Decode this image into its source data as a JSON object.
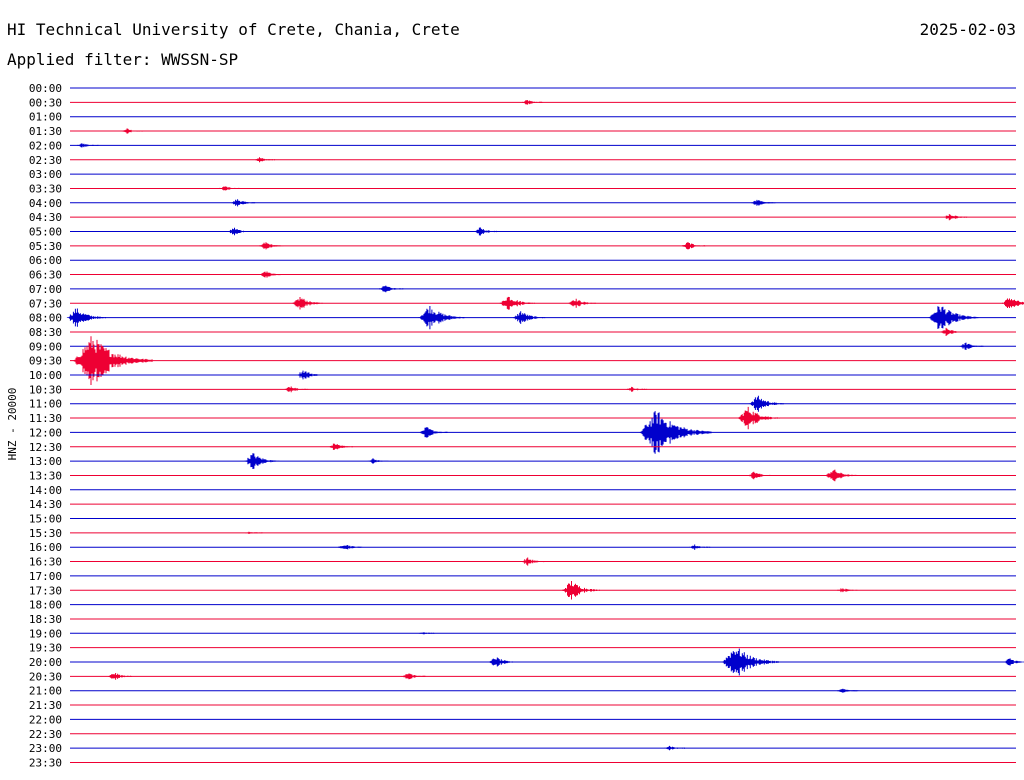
{
  "header": {
    "title": "HI Technical University of Crete, Chania, Crete",
    "date": "2025-02-03",
    "filter_text": "Applied filter: WWSSN-SP"
  },
  "colors": {
    "blue": "#0000cc",
    "red": "#ee0033",
    "background": "#ffffff"
  },
  "chart_data": {
    "type": "line",
    "title": "",
    "ylabel": "HNZ - 20000",
    "xlabel": "",
    "grid": false,
    "series_colors_alternate": [
      "#0000cc",
      "#ee0033"
    ],
    "rows": [
      "00:00",
      "00:30",
      "01:00",
      "01:30",
      "02:00",
      "02:30",
      "03:00",
      "03:30",
      "04:00",
      "04:30",
      "05:00",
      "05:30",
      "06:00",
      "06:30",
      "07:00",
      "07:30",
      "08:00",
      "08:30",
      "09:00",
      "09:30",
      "10:00",
      "10:30",
      "11:00",
      "11:30",
      "12:00",
      "12:30",
      "13:00",
      "13:30",
      "14:00",
      "14:30",
      "15:00",
      "15:30",
      "16:00",
      "16:30",
      "17:00",
      "17:30",
      "18:00",
      "18:30",
      "19:00",
      "19:30",
      "20:00",
      "20:30",
      "21:00",
      "21:30",
      "22:00",
      "22:30",
      "23:00",
      "23:30"
    ],
    "x_range_minutes": [
      0,
      30
    ],
    "events": [
      {
        "row": "00:30",
        "minute": 14.5,
        "amplitude": 2
      },
      {
        "row": "01:30",
        "minute": 1.8,
        "amplitude": 2
      },
      {
        "row": "02:00",
        "minute": 0.4,
        "amplitude": 2
      },
      {
        "row": "02:30",
        "minute": 6.0,
        "amplitude": 2
      },
      {
        "row": "03:30",
        "minute": 4.9,
        "amplitude": 2
      },
      {
        "row": "04:00",
        "minute": 5.3,
        "amplitude": 3
      },
      {
        "row": "04:00",
        "minute": 21.8,
        "amplitude": 3
      },
      {
        "row": "04:30",
        "minute": 27.9,
        "amplitude": 3
      },
      {
        "row": "05:00",
        "minute": 5.2,
        "amplitude": 3
      },
      {
        "row": "05:00",
        "minute": 13.0,
        "amplitude": 3
      },
      {
        "row": "05:30",
        "minute": 6.2,
        "amplitude": 3
      },
      {
        "row": "05:30",
        "minute": 19.6,
        "amplitude": 3
      },
      {
        "row": "06:30",
        "minute": 6.2,
        "amplitude": 3
      },
      {
        "row": "07:00",
        "minute": 10.0,
        "amplitude": 3
      },
      {
        "row": "07:30",
        "minute": 7.3,
        "amplitude": 5
      },
      {
        "row": "07:30",
        "minute": 13.9,
        "amplitude": 6
      },
      {
        "row": "07:30",
        "minute": 16.0,
        "amplitude": 4
      },
      {
        "row": "07:30",
        "minute": 29.8,
        "amplitude": 5
      },
      {
        "row": "08:00",
        "minute": 0.2,
        "amplitude": 7
      },
      {
        "row": "08:00",
        "minute": 11.4,
        "amplitude": 9
      },
      {
        "row": "08:00",
        "minute": 14.3,
        "amplitude": 5
      },
      {
        "row": "08:00",
        "minute": 27.6,
        "amplitude": 10
      },
      {
        "row": "08:30",
        "minute": 27.8,
        "amplitude": 3
      },
      {
        "row": "09:00",
        "minute": 28.4,
        "amplitude": 3
      },
      {
        "row": "09:30",
        "minute": 0.7,
        "amplitude": 18
      },
      {
        "row": "10:00",
        "minute": 7.4,
        "amplitude": 4
      },
      {
        "row": "10:30",
        "minute": 7.0,
        "amplitude": 3
      },
      {
        "row": "10:30",
        "minute": 17.8,
        "amplitude": 2
      },
      {
        "row": "11:00",
        "minute": 21.8,
        "amplitude": 6
      },
      {
        "row": "11:30",
        "minute": 21.5,
        "amplitude": 8
      },
      {
        "row": "12:00",
        "minute": 11.3,
        "amplitude": 4
      },
      {
        "row": "12:00",
        "minute": 18.6,
        "amplitude": 16
      },
      {
        "row": "12:30",
        "minute": 8.4,
        "amplitude": 3
      },
      {
        "row": "13:00",
        "minute": 5.8,
        "amplitude": 6
      },
      {
        "row": "13:00",
        "minute": 9.6,
        "amplitude": 2
      },
      {
        "row": "13:30",
        "minute": 21.7,
        "amplitude": 3
      },
      {
        "row": "13:30",
        "minute": 24.2,
        "amplitude": 5
      },
      {
        "row": "15:30",
        "minute": 5.7,
        "amplitude": 1
      },
      {
        "row": "16:00",
        "minute": 8.7,
        "amplitude": 3
      },
      {
        "row": "16:00",
        "minute": 19.8,
        "amplitude": 2
      },
      {
        "row": "16:30",
        "minute": 14.5,
        "amplitude": 3
      },
      {
        "row": "17:30",
        "minute": 15.9,
        "amplitude": 7
      },
      {
        "row": "17:30",
        "minute": 24.5,
        "amplitude": 2
      },
      {
        "row": "19:00",
        "minute": 11.2,
        "amplitude": 1
      },
      {
        "row": "20:00",
        "minute": 13.5,
        "amplitude": 4
      },
      {
        "row": "20:00",
        "minute": 21.1,
        "amplitude": 12
      },
      {
        "row": "20:00",
        "minute": 29.8,
        "amplitude": 3
      },
      {
        "row": "20:30",
        "minute": 1.4,
        "amplitude": 3
      },
      {
        "row": "20:30",
        "minute": 10.7,
        "amplitude": 3
      },
      {
        "row": "21:00",
        "minute": 24.5,
        "amplitude": 2
      },
      {
        "row": "23:00",
        "minute": 19.0,
        "amplitude": 2
      }
    ]
  }
}
